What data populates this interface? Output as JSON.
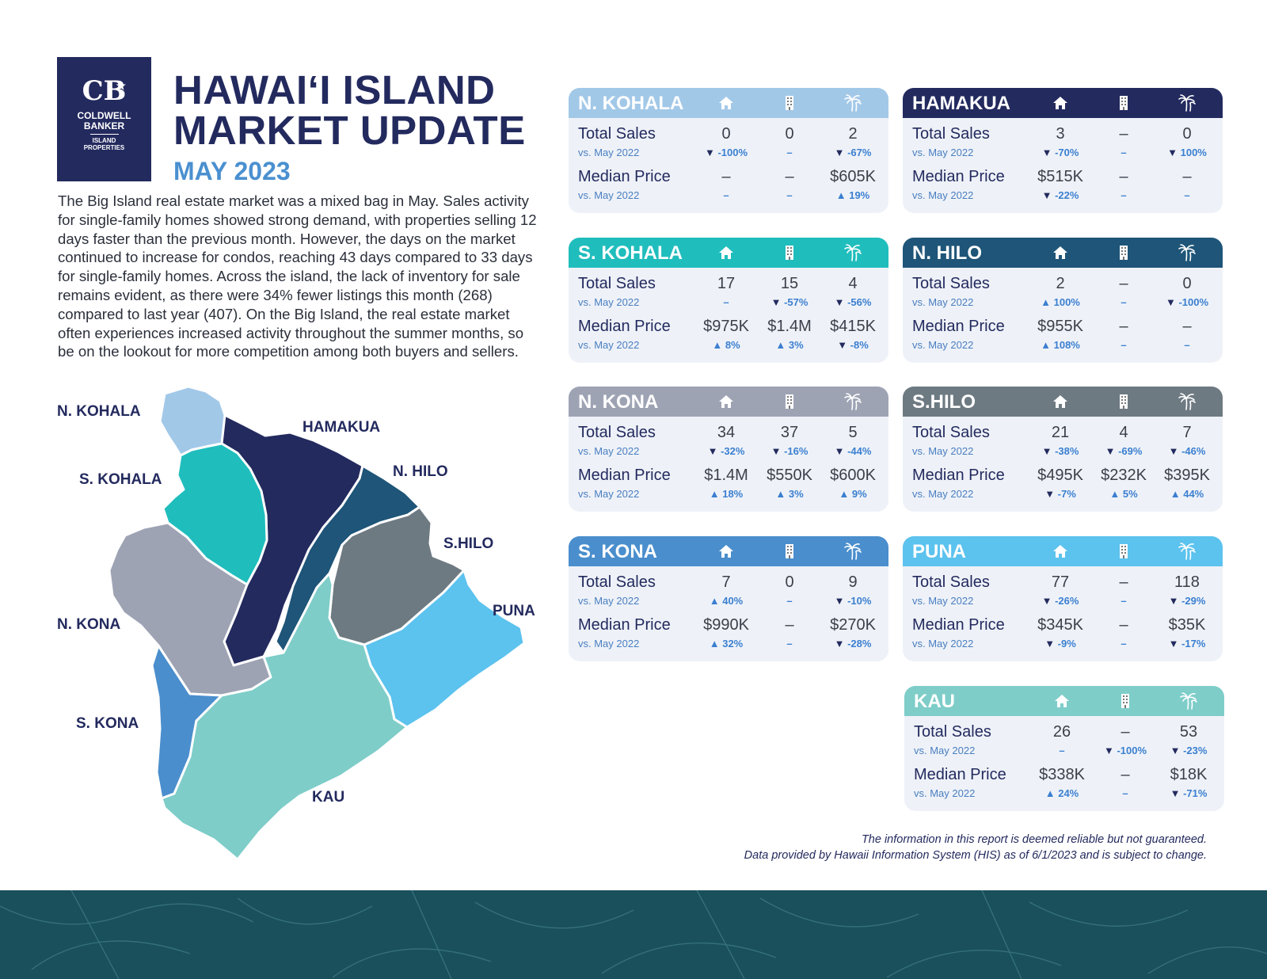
{
  "logo": {
    "monogram": "CB",
    "line1": "COLDWELL",
    "line2": "BANKER",
    "line3": "ISLAND",
    "line4": "PROPERTIES"
  },
  "header": {
    "title_line1": "HAWAI‘I ISLAND",
    "title_line2": "MARKET UPDATE",
    "subtitle": "MAY 2023"
  },
  "intro": "The Big Island real estate market was a mixed bag in May. Sales activity for single-family homes showed strong demand, with properties selling 12 days faster than the previous month. However, the days on the market continued to increase for condos, reaching 43 days compared to 33 days for single-family homes. Across the island, the lack of inventory for sale remains evident, as there were 34% fewer listings this month (268) compared to last year (407). On the Big Island, the real estate market often experiences increased activity throughout the summer months, so be on the lookout for more competition among both buyers and sellers.",
  "map": {
    "labels": {
      "nkohala": "N. KOHALA",
      "hamakua": "HAMAKUA",
      "skohala": "S. KOHALA",
      "nhilo": "N. HILO",
      "shilo": "S.HILO",
      "puna": "PUNA",
      "nkona": "N. KONA",
      "skona": "S. KONA",
      "kau": "KAU"
    },
    "colors": {
      "nkohala": "#a2c8e8",
      "hamakua": "#232a5e",
      "skohala": "#20bdbd",
      "nhilo": "#1e5578",
      "shilo": "#6e7a82",
      "puna": "#5cc2ee",
      "nkona": "#9ea3b4",
      "skona": "#4a8ecd",
      "kau": "#7ecdc9"
    }
  },
  "labels": {
    "total_sales": "Total Sales",
    "median_price": "Median Price",
    "vs": "vs. May 2022"
  },
  "icons": [
    "house-icon",
    "condo-icon",
    "palm-land-icon"
  ],
  "cards": [
    {
      "name": "N. KOHALA",
      "color": "#a2c8e8",
      "sales": [
        {
          "v": "0",
          "c": "-100%",
          "d": "down"
        },
        {
          "v": "0",
          "c": "–",
          "d": ""
        },
        {
          "v": "2",
          "c": "-67%",
          "d": "down"
        }
      ],
      "price": [
        {
          "v": "–",
          "c": "–",
          "d": ""
        },
        {
          "v": "–",
          "c": "–",
          "d": ""
        },
        {
          "v": "$605K",
          "c": "19%",
          "d": "up"
        }
      ]
    },
    {
      "name": "HAMAKUA",
      "color": "#232a5e",
      "sales": [
        {
          "v": "3",
          "c": "-70%",
          "d": "down"
        },
        {
          "v": "–",
          "c": "–",
          "d": ""
        },
        {
          "v": "0",
          "c": "100%",
          "d": "down"
        }
      ],
      "price": [
        {
          "v": "$515K",
          "c": "-22%",
          "d": "down"
        },
        {
          "v": "–",
          "c": "–",
          "d": ""
        },
        {
          "v": "–",
          "c": "–",
          "d": ""
        }
      ]
    },
    {
      "name": "S. KOHALA",
      "color": "#20bdbd",
      "sales": [
        {
          "v": "17",
          "c": "–",
          "d": ""
        },
        {
          "v": "15",
          "c": "-57%",
          "d": "down"
        },
        {
          "v": "4",
          "c": "-56%",
          "d": "down"
        }
      ],
      "price": [
        {
          "v": "$975K",
          "c": "8%",
          "d": "up"
        },
        {
          "v": "$1.4M",
          "c": "3%",
          "d": "up"
        },
        {
          "v": "$415K",
          "c": "-8%",
          "d": "down"
        }
      ]
    },
    {
      "name": "N. HILO",
      "color": "#1e5578",
      "sales": [
        {
          "v": "2",
          "c": "100%",
          "d": "up"
        },
        {
          "v": "–",
          "c": "–",
          "d": ""
        },
        {
          "v": "0",
          "c": "-100%",
          "d": "down"
        }
      ],
      "price": [
        {
          "v": "$955K",
          "c": "108%",
          "d": "up"
        },
        {
          "v": "–",
          "c": "–",
          "d": ""
        },
        {
          "v": "–",
          "c": "–",
          "d": ""
        }
      ]
    },
    {
      "name": "N. KONA",
      "color": "#9ea3b4",
      "sales": [
        {
          "v": "34",
          "c": "-32%",
          "d": "down"
        },
        {
          "v": "37",
          "c": "-16%",
          "d": "down"
        },
        {
          "v": "5",
          "c": "-44%",
          "d": "down"
        }
      ],
      "price": [
        {
          "v": "$1.4M",
          "c": "18%",
          "d": "up"
        },
        {
          "v": "$550K",
          "c": "3%",
          "d": "up"
        },
        {
          "v": "$600K",
          "c": "9%",
          "d": "up"
        }
      ]
    },
    {
      "name": "S.HILO",
      "color": "#6e7a82",
      "sales": [
        {
          "v": "21",
          "c": "-38%",
          "d": "down"
        },
        {
          "v": "4",
          "c": "-69%",
          "d": "down"
        },
        {
          "v": "7",
          "c": "-46%",
          "d": "down"
        }
      ],
      "price": [
        {
          "v": "$495K",
          "c": "-7%",
          "d": "down"
        },
        {
          "v": "$232K",
          "c": "5%",
          "d": "up"
        },
        {
          "v": "$395K",
          "c": "44%",
          "d": "up"
        }
      ]
    },
    {
      "name": "S. KONA",
      "color": "#4a8ecd",
      "sales": [
        {
          "v": "7",
          "c": "40%",
          "d": "up"
        },
        {
          "v": "0",
          "c": "–",
          "d": ""
        },
        {
          "v": "9",
          "c": "-10%",
          "d": "down"
        }
      ],
      "price": [
        {
          "v": "$990K",
          "c": "32%",
          "d": "up"
        },
        {
          "v": "–",
          "c": "–",
          "d": ""
        },
        {
          "v": "$270K",
          "c": "-28%",
          "d": "down"
        }
      ]
    },
    {
      "name": "PUNA",
      "color": "#5cc2ee",
      "sales": [
        {
          "v": "77",
          "c": "-26%",
          "d": "down"
        },
        {
          "v": "–",
          "c": "–",
          "d": ""
        },
        {
          "v": "118",
          "c": "-29%",
          "d": "down"
        }
      ],
      "price": [
        {
          "v": "$345K",
          "c": "-9%",
          "d": "down"
        },
        {
          "v": "–",
          "c": "–",
          "d": ""
        },
        {
          "v": "$35K",
          "c": "-17%",
          "d": "down"
        }
      ]
    },
    {
      "name": "KAU",
      "color": "#7ecdc9",
      "sales": [
        {
          "v": "26",
          "c": "–",
          "d": ""
        },
        {
          "v": "–",
          "c": "-100%",
          "d": "down"
        },
        {
          "v": "53",
          "c": "-23%",
          "d": "down"
        }
      ],
      "price": [
        {
          "v": "$338K",
          "c": "24%",
          "d": "up"
        },
        {
          "v": "–",
          "c": "–",
          "d": ""
        },
        {
          "v": "$18K",
          "c": "-71%",
          "d": "down"
        }
      ]
    }
  ],
  "disclaimer": {
    "line1": "The information in this report is deemed reliable but not guaranteed.",
    "line2": "Data provided by Hawaii Information System (HIS) as of 6/1/2023 and is subject to change."
  }
}
